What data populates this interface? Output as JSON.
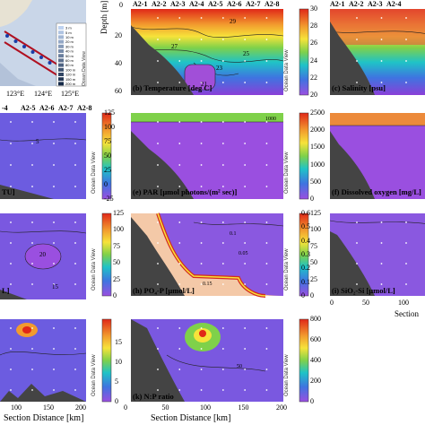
{
  "chart_data": [
    {
      "type": "contour",
      "panel": "map",
      "xticks": [
        "123°E",
        "124°E",
        "125°E"
      ],
      "legend": [
        "3 m",
        "5 m",
        "10 m",
        "20 m",
        "30 m",
        "40 m",
        "50 m",
        "60 m",
        "80 m",
        "100 m",
        "120 m",
        "150 m",
        "200 m"
      ]
    },
    {
      "type": "contour",
      "panel": "b",
      "title": "(b) Temperature [deg C]",
      "stations": [
        "A2-1",
        "A2-2",
        "A2-3",
        "A2-4",
        "A2-5",
        "A2-6",
        "A2-7",
        "A2-8"
      ],
      "ylabel": "Depth [m]",
      "yticks": [
        0,
        20,
        40,
        60
      ],
      "colorbar": [
        30,
        28,
        26,
        24,
        22,
        20
      ],
      "contour_labels": [
        "29",
        "27",
        "25",
        "23",
        "21"
      ]
    },
    {
      "type": "contour",
      "panel": "c",
      "title": "(c) Salinity [psu]",
      "stations": [
        "A2-1",
        "A2-2",
        "A2-3",
        "A2-4"
      ]
    },
    {
      "type": "contour",
      "panel": "d",
      "title": "TU]",
      "stations": [
        "-4",
        "A2-5",
        "A2-6",
        "A2-7",
        "A2-8"
      ],
      "contour_labels": [
        "5"
      ]
    },
    {
      "type": "contour",
      "panel": "e",
      "title": "(e) PAR [µmol photons/(m² sec)]",
      "colorbar": [
        125,
        100,
        75,
        50,
        25,
        0,
        -25
      ],
      "contour_labels": [
        "1000"
      ]
    },
    {
      "type": "contour",
      "panel": "f",
      "title": "(f) Dissolved oxygen [mg/L]",
      "colorbar": [
        2500,
        2000,
        1500,
        1000,
        500,
        0
      ]
    },
    {
      "type": "contour",
      "panel": "g",
      "title": "L]",
      "contour_labels": [
        "15",
        "20"
      ]
    },
    {
      "type": "contour",
      "panel": "h",
      "title": "(h) PO₄-P [µmol/L]",
      "yticks": [
        0,
        25,
        50,
        75,
        100,
        125
      ],
      "colorbar": [
        125,
        100,
        75,
        50,
        25,
        0
      ],
      "contour_labels": [
        "0.1",
        "0.05",
        "0.15"
      ]
    },
    {
      "type": "contour",
      "panel": "i",
      "title": "(i) SiO₂-Si [µmol/L]",
      "colorbar": [
        0.6,
        0.5,
        0.4,
        0.3,
        0.2,
        0.1,
        0
      ],
      "xticks": [
        0,
        50,
        100
      ],
      "xlabel": "Section"
    },
    {
      "type": "contour",
      "panel": "j",
      "xticks": [
        100,
        150,
        200
      ],
      "xlabel": "Section Distance [km]"
    },
    {
      "type": "contour",
      "panel": "k",
      "title": "(k) N:P ratio",
      "xticks": [
        0,
        50,
        100,
        150,
        200
      ],
      "xlabel": "Section Distance [km]",
      "colorbar_left": [
        15,
        10,
        5,
        0
      ],
      "colorbar": [
        800,
        600,
        400,
        200,
        0
      ],
      "contour_labels": [
        "50"
      ]
    }
  ],
  "watermark": "Ocean Data View"
}
